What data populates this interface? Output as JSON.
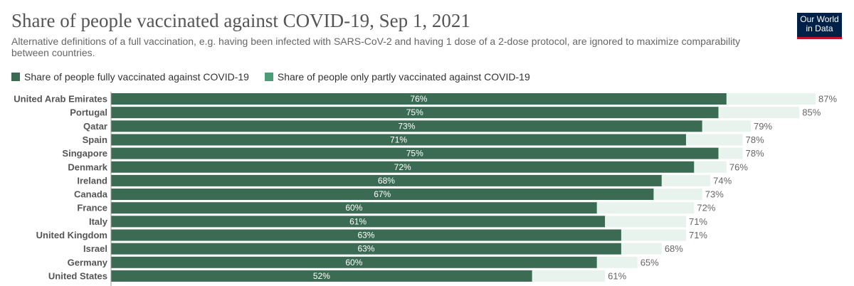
{
  "header": {
    "title": "Share of people vaccinated against COVID-19, Sep 1, 2021",
    "subtitle": "Alternative definitions of a full vaccination, e.g. having been infected with SARS-CoV-2 and having 1 dose of a 2-dose protocol, are ignored to maximize comparability between countries.",
    "logo_line1": "Our World",
    "logo_line2": "in Data"
  },
  "colors": {
    "full": "#3b6b52",
    "partial": "#e9f3ee",
    "partial_legend": "#4c9c78",
    "logo_bg": "#002147",
    "logo_accent": "#c8102e"
  },
  "chart_data": {
    "type": "bar",
    "orientation": "horizontal",
    "stacked": true,
    "title": "Share of people vaccinated against COVID-19, Sep 1, 2021",
    "subtitle": "Alternative definitions of a full vaccination, e.g. having been infected with SARS-CoV-2 and having 1 dose of a 2-dose protocol, are ignored to maximize comparability between countries.",
    "xlim": [
      0,
      100
    ],
    "unit": "%",
    "legend_position": "top-left",
    "categories": [
      "United Arab Emirates",
      "Portugal",
      "Qatar",
      "Spain",
      "Singapore",
      "Denmark",
      "Ireland",
      "Canada",
      "France",
      "Italy",
      "United Kingdom",
      "Israel",
      "Germany",
      "United States"
    ],
    "series": [
      {
        "name": "Share of people fully vaccinated against COVID-19",
        "values": [
          76,
          75,
          73,
          71,
          75,
          72,
          68,
          67,
          60,
          61,
          63,
          63,
          60,
          52
        ]
      },
      {
        "name": "Share of people only partly vaccinated against COVID-19",
        "values": [
          11,
          10,
          6,
          7,
          3,
          4,
          6,
          6,
          12,
          10,
          8,
          5,
          5,
          9
        ]
      }
    ],
    "total_labels": [
      "87%",
      "85%",
      "79%",
      "78%",
      "78%",
      "76%",
      "74%",
      "73%",
      "72%",
      "71%",
      "71%",
      "68%",
      "65%",
      "61%"
    ]
  }
}
